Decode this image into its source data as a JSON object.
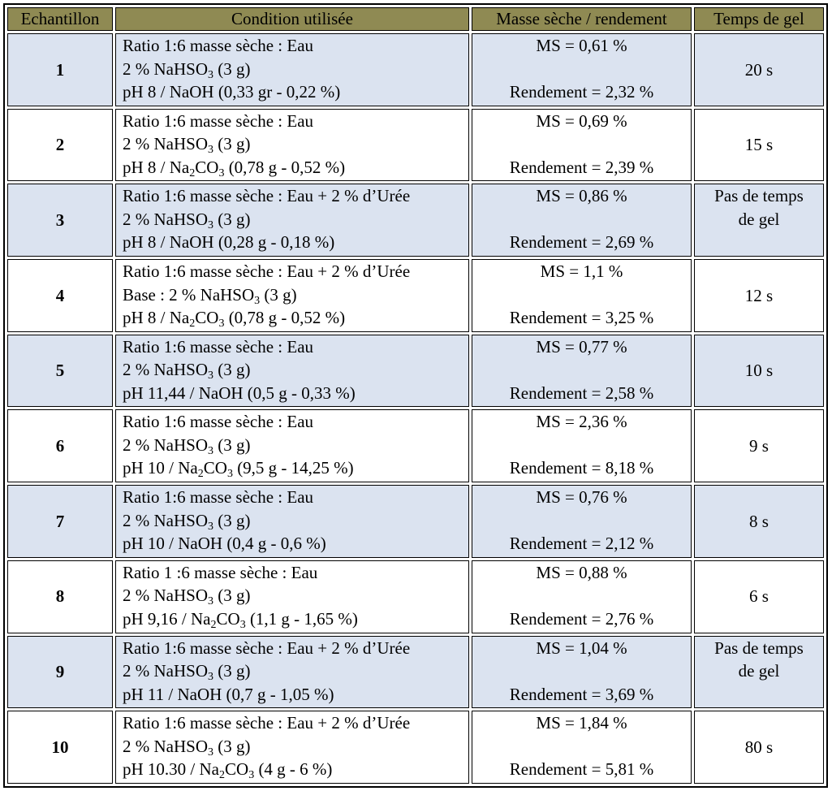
{
  "headers": {
    "sample": "Echantillon",
    "condition": "Condition utilisée",
    "mass": "Masse sèche / rendement",
    "gel": "Temps de gel"
  },
  "rows": [
    {
      "id": "1",
      "cond": [
        "Ratio 1:6  masse sèche : Eau",
        "2 % NaHSO₃ (3 g)",
        "pH 8 / NaOH (0,33 gr - 0,22 %)"
      ],
      "ms": "MS =  0,61 %",
      "rend": "Rendement = 2,32 %",
      "gel": [
        "20 s"
      ]
    },
    {
      "id": "2",
      "cond": [
        "Ratio 1:6 masse sèche : Eau",
        "2 % NaHSO₃ (3 g)",
        "pH 8 / Na₂CO₃ (0,78 g - 0,52 %)"
      ],
      "ms": "MS =  0,69 %",
      "rend": "Rendement = 2,39 %",
      "gel": [
        "15 s"
      ]
    },
    {
      "id": "3",
      "cond": [
        "Ratio 1:6 masse sèche : Eau + 2 % d’Urée",
        "2 % NaHSO₃ (3 g)",
        "pH 8 / NaOH (0,28 g - 0,18 %)"
      ],
      "ms": "MS =  0,86 %",
      "rend": "Rendement = 2,69 %",
      "gel": [
        "Pas de temps",
        "de gel"
      ]
    },
    {
      "id": "4",
      "cond": [
        "Ratio 1:6 masse sèche : Eau + 2 % d’Urée",
        "Base : 2 % NaHSO₃ (3 g)",
        "pH 8 / Na₂CO₃ (0,78 g - 0,52 %)"
      ],
      "ms": "MS =  1,1 %",
      "rend": "Rendement = 3,25 %",
      "gel": [
        "12 s"
      ]
    },
    {
      "id": "5",
      "cond": [
        "Ratio 1:6 masse sèche : Eau",
        "2 % NaHSO₃ (3 g)",
        "pH 11,44 / NaOH (0,5 g - 0,33 %)"
      ],
      "ms": "MS =  0,77 %",
      "rend": "Rendement = 2,58 %",
      "gel": [
        "10 s"
      ]
    },
    {
      "id": "6",
      "cond": [
        "Ratio 1:6 masse sèche : Eau",
        "2 % NaHSO₃ (3 g)",
        "pH 10 / Na₂CO₃ (9,5 g - 14,25 %)"
      ],
      "ms": "MS =  2,36 %",
      "rend": "Rendement = 8,18 %",
      "gel": [
        "9 s"
      ]
    },
    {
      "id": "7",
      "cond": [
        "Ratio 1:6 masse sèche : Eau",
        "2 % NaHSO₃ (3 g)",
        "pH 10 / NaOH (0,4 g - 0,6 %)"
      ],
      "ms": "MS =  0,76 %",
      "rend": "Rendement = 2,12 %",
      "gel": [
        "8 s"
      ]
    },
    {
      "id": "8",
      "cond": [
        "Ratio 1 :6 masse sèche : Eau",
        "2 % NaHSO₃ (3 g)",
        "pH 9,16 / Na₂CO₃ (1,1 g - 1,65 %)"
      ],
      "ms": "MS =  0,88 %",
      "rend": "Rendement = 2,76 %",
      "gel": [
        "6 s"
      ]
    },
    {
      "id": "9",
      "cond": [
        "Ratio 1:6 masse sèche : Eau + 2 % d’Urée",
        "2 % NaHSO₃ (3 g)",
        "pH 11 / NaOH (0,7 g - 1,05 %)"
      ],
      "ms": "MS =  1,04 %",
      "rend": "Rendement = 3,69 %",
      "gel": [
        "Pas de temps",
        "de gel"
      ]
    },
    {
      "id": "10",
      "cond": [
        "Ratio 1:6 masse sèche : Eau + 2 % d’Urée",
        "2 % NaHSO₃ (3 g)",
        "pH 10.30 / Na₂CO₃ (4 g - 6 %)"
      ],
      "ms": "MS =  1,84 %",
      "rend": "Rendement = 5,81 %",
      "gel": [
        "80 s"
      ]
    }
  ]
}
